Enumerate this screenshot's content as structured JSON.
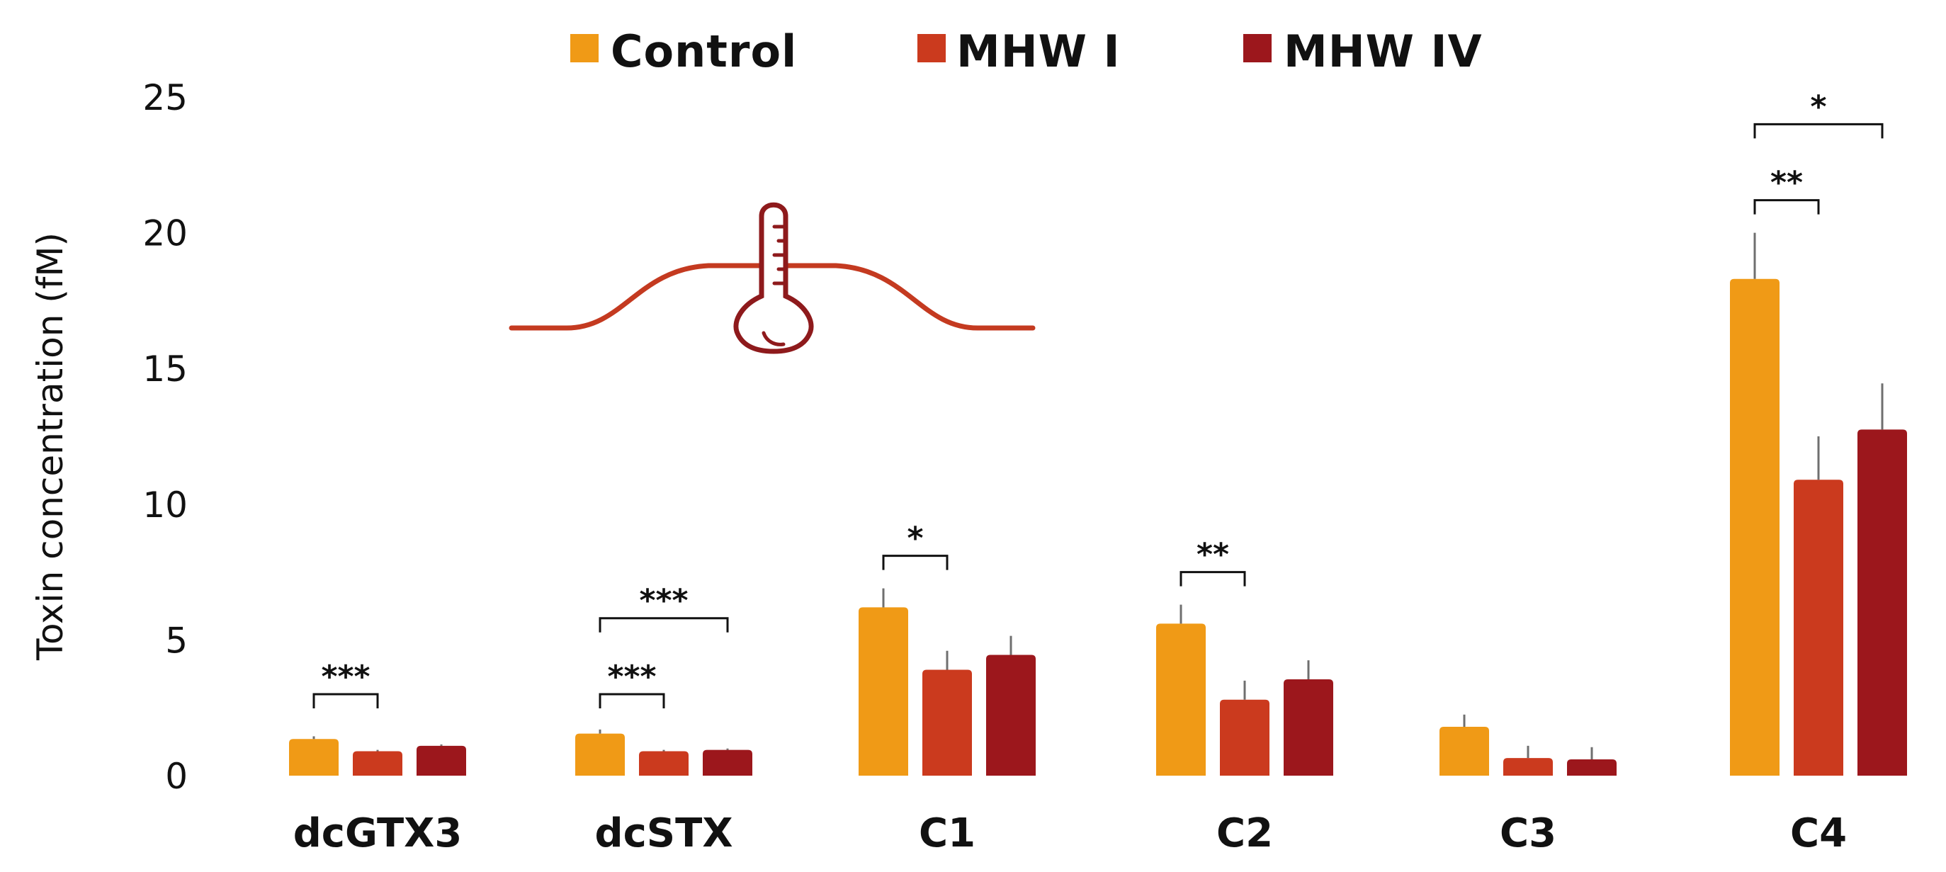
{
  "chart_data": {
    "type": "bar",
    "title": "",
    "xlabel": "",
    "ylabel": "Toxin concentration (fM)",
    "ylim": [
      0,
      25
    ],
    "yticks": [
      0,
      5,
      10,
      15,
      20,
      25
    ],
    "grid": false,
    "legend_position": "top-center",
    "categories": [
      "dcGTX3",
      "dcSTX",
      "C1",
      "C2",
      "C3",
      "C4"
    ],
    "series": [
      {
        "name": "Control",
        "color": "#F09A16",
        "values": [
          1.35,
          1.55,
          6.2,
          5.6,
          1.8,
          18.3
        ],
        "errors": [
          0.1,
          0.15,
          0.7,
          0.7,
          0.45,
          1.7
        ]
      },
      {
        "name": "MHW I",
        "color": "#CB3A1E",
        "values": [
          0.9,
          0.9,
          3.9,
          2.8,
          0.65,
          10.9
        ],
        "errors": [
          0.05,
          0.05,
          0.7,
          0.7,
          0.45,
          1.6
        ]
      },
      {
        "name": "MHW IV",
        "color": "#9C171C",
        "values": [
          1.1,
          0.95,
          4.45,
          3.55,
          0.6,
          12.75
        ],
        "errors": [
          0.05,
          0.05,
          0.7,
          0.7,
          0.45,
          1.7
        ]
      }
    ],
    "significance": [
      {
        "category": "dcGTX3",
        "from": "Control",
        "to": "MHW I",
        "label": "***",
        "y": 3.0
      },
      {
        "category": "dcSTX",
        "from": "Control",
        "to": "MHW I",
        "label": "***",
        "y": 3.0
      },
      {
        "category": "dcSTX",
        "from": "Control",
        "to": "MHW IV",
        "label": "***",
        "y": 5.8
      },
      {
        "category": "C1",
        "from": "Control",
        "to": "MHW I",
        "label": "*",
        "y": 8.1
      },
      {
        "category": "C2",
        "from": "Control",
        "to": "MHW I",
        "label": "**",
        "y": 7.5
      },
      {
        "category": "C4",
        "from": "Control",
        "to": "MHW I",
        "label": "**",
        "y": 21.2
      },
      {
        "category": "C4",
        "from": "Control",
        "to": "MHW IV",
        "label": "*",
        "y": 24.0
      }
    ],
    "inset_icon": "marine-heatwave-thermometer-icon"
  }
}
